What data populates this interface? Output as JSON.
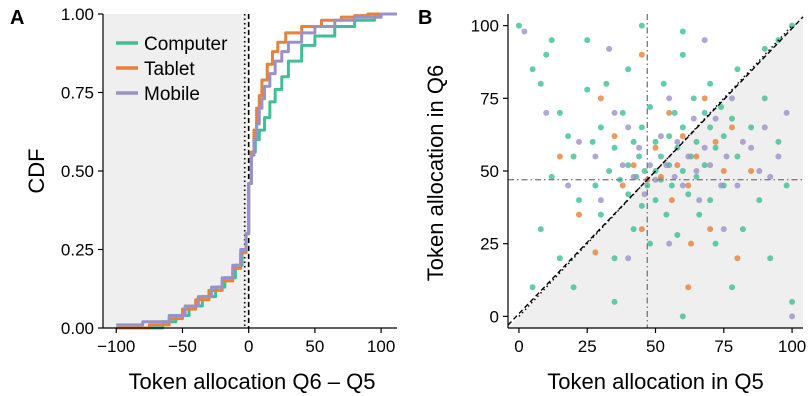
{
  "chart_data": [
    {
      "panel": "A",
      "type": "line",
      "subtype": "cdf",
      "xlabel": "Token allocation Q6 – Q5",
      "ylabel": "CDF",
      "xlim": [
        -110,
        112
      ],
      "ylim": [
        0,
        1
      ],
      "xticks": [
        -100,
        -50,
        0,
        50,
        100
      ],
      "xtick_labels": [
        "−100",
        "−50",
        "0",
        "50",
        "100"
      ],
      "yticks": [
        0,
        0.25,
        0.5,
        0.75,
        1
      ],
      "ytick_labels": [
        "0.00",
        "0.25",
        "0.50",
        "0.75",
        "1.00"
      ],
      "shaded_region": {
        "x": [
          -110,
          0
        ],
        "color": "#efefef"
      },
      "vlines": [
        {
          "x": 0,
          "style": "dashed",
          "color": "#000000"
        },
        {
          "x": -3,
          "style": "dotted",
          "color": "#000000"
        }
      ],
      "legend_position": "top-left",
      "series": [
        {
          "name": "Computer",
          "color": "#3fbf93",
          "x": [
            -100,
            -65,
            -55,
            -45,
            -35,
            -25,
            -18,
            -10,
            -5,
            -2,
            0,
            2,
            5,
            8,
            12,
            16,
            20,
            25,
            30,
            40,
            50,
            65,
            80,
            95,
            100
          ],
          "y": [
            0,
            0.02,
            0.04,
            0.07,
            0.1,
            0.13,
            0.16,
            0.2,
            0.25,
            0.3,
            0.46,
            0.56,
            0.6,
            0.63,
            0.67,
            0.72,
            0.76,
            0.8,
            0.85,
            0.9,
            0.93,
            0.96,
            0.98,
            0.99,
            1
          ]
        },
        {
          "name": "Tablet",
          "color": "#e8813a",
          "x": [
            -100,
            -75,
            -60,
            -50,
            -40,
            -30,
            -20,
            -12,
            -6,
            -2,
            0,
            2,
            4,
            6,
            8,
            10,
            14,
            18,
            22,
            28,
            40,
            55,
            70,
            80,
            90,
            100
          ],
          "y": [
            0,
            0.01,
            0.03,
            0.06,
            0.09,
            0.12,
            0.15,
            0.19,
            0.24,
            0.3,
            0.46,
            0.56,
            0.63,
            0.7,
            0.74,
            0.79,
            0.84,
            0.88,
            0.91,
            0.94,
            0.96,
            0.98,
            0.99,
            0.995,
            1,
            1
          ]
        },
        {
          "name": "Mobile",
          "color": "#9b91c9",
          "x": [
            -100,
            -80,
            -60,
            -48,
            -38,
            -28,
            -20,
            -12,
            -6,
            -2,
            0,
            2,
            4,
            6,
            8,
            10,
            12,
            16,
            20,
            25,
            30,
            40,
            50,
            65,
            80,
            100
          ],
          "y": [
            0.01,
            0.02,
            0.04,
            0.07,
            0.1,
            0.13,
            0.16,
            0.2,
            0.25,
            0.3,
            0.46,
            0.55,
            0.6,
            0.65,
            0.7,
            0.73,
            0.77,
            0.81,
            0.85,
            0.88,
            0.91,
            0.94,
            0.96,
            0.98,
            0.99,
            1
          ]
        }
      ]
    },
    {
      "panel": "B",
      "type": "scatter",
      "xlabel": "Token allocation in Q5",
      "ylabel": "Token allocation in Q6",
      "xlim": [
        -4,
        104
      ],
      "ylim": [
        -4,
        104
      ],
      "xticks": [
        0,
        25,
        50,
        75,
        100
      ],
      "yticks": [
        0,
        25,
        50,
        75,
        100
      ],
      "xtick_labels": [
        "0",
        "25",
        "50",
        "75",
        "100"
      ],
      "ytick_labels": [
        "0",
        "25",
        "50",
        "75",
        "100"
      ],
      "shaded_region": "below y = x",
      "ref_lines": [
        {
          "kind": "vline",
          "x": 47,
          "style": "dashdot",
          "color": "#808080"
        },
        {
          "kind": "hline",
          "y": 47,
          "style": "dashdot",
          "color": "#808080"
        },
        {
          "kind": "diagonal",
          "style": "dotted",
          "color": "#000000",
          "from": [
            0,
            0
          ],
          "to": [
            100,
            100
          ]
        },
        {
          "kind": "fit",
          "style": "dashed",
          "color": "#000000",
          "from": [
            -4,
            -3
          ],
          "to": [
            104,
            103
          ]
        }
      ],
      "series": [
        {
          "name": "Computer",
          "color": "#3fbf93",
          "points": [
            [
              0,
              100
            ],
            [
              5,
              85
            ],
            [
              8,
              80
            ],
            [
              10,
              90
            ],
            [
              12,
              95
            ],
            [
              15,
              70
            ],
            [
              18,
              62
            ],
            [
              20,
              55
            ],
            [
              22,
              40
            ],
            [
              25,
              78
            ],
            [
              27,
              60
            ],
            [
              28,
              45
            ],
            [
              30,
              65
            ],
            [
              30,
              35
            ],
            [
              32,
              80
            ],
            [
              33,
              50
            ],
            [
              35,
              58
            ],
            [
              35,
              20
            ],
            [
              37,
              47
            ],
            [
              38,
              70
            ],
            [
              40,
              52
            ],
            [
              40,
              42
            ],
            [
              40,
              85
            ],
            [
              42,
              60
            ],
            [
              42,
              30
            ],
            [
              43,
              48
            ],
            [
              44,
              55
            ],
            [
              45,
              65
            ],
            [
              45,
              38
            ],
            [
              46,
              50
            ],
            [
              47,
              45
            ],
            [
              48,
              72
            ],
            [
              48,
              25
            ],
            [
              50,
              50
            ],
            [
              50,
              60
            ],
            [
              50,
              40
            ],
            [
              52,
              55
            ],
            [
              52,
              47
            ],
            [
              53,
              80
            ],
            [
              54,
              35
            ],
            [
              55,
              62
            ],
            [
              55,
              52
            ],
            [
              56,
              45
            ],
            [
              57,
              70
            ],
            [
              58,
              58
            ],
            [
              58,
              28
            ],
            [
              60,
              50
            ],
            [
              60,
              65
            ],
            [
              60,
              90
            ],
            [
              62,
              42
            ],
            [
              63,
              55
            ],
            [
              64,
              75
            ],
            [
              65,
              60
            ],
            [
              65,
              48
            ],
            [
              66,
              35
            ],
            [
              68,
              70
            ],
            [
              68,
              52
            ],
            [
              70,
              65
            ],
            [
              70,
              80
            ],
            [
              70,
              40
            ],
            [
              72,
              58
            ],
            [
              72,
              25
            ],
            [
              74,
              72
            ],
            [
              75,
              62
            ],
            [
              75,
              45
            ],
            [
              78,
              68
            ],
            [
              80,
              55
            ],
            [
              80,
              85
            ],
            [
              82,
              30
            ],
            [
              85,
              65
            ],
            [
              88,
              40
            ],
            [
              90,
              75
            ],
            [
              92,
              20
            ],
            [
              95,
              60
            ],
            [
              98,
              45
            ],
            [
              100,
              100
            ],
            [
              100,
              5
            ],
            [
              8,
              30
            ],
            [
              15,
              20
            ],
            [
              20,
              10
            ],
            [
              5,
              10
            ],
            [
              35,
              5
            ],
            [
              60,
              0
            ],
            [
              78,
              10
            ],
            [
              90,
              92
            ],
            [
              12,
              48
            ],
            [
              25,
              95
            ],
            [
              45,
              100
            ],
            [
              60,
              98
            ],
            [
              95,
              95
            ]
          ]
        },
        {
          "name": "Tablet",
          "color": "#e8813a",
          "points": [
            [
              15,
              55
            ],
            [
              22,
              35
            ],
            [
              30,
              75
            ],
            [
              35,
              62
            ],
            [
              38,
              45
            ],
            [
              42,
              52
            ],
            [
              45,
              30
            ],
            [
              47,
              47
            ],
            [
              50,
              58
            ],
            [
              52,
              48
            ],
            [
              55,
              70
            ],
            [
              56,
              40
            ],
            [
              58,
              52
            ],
            [
              60,
              62
            ],
            [
              62,
              45
            ],
            [
              63,
              25
            ],
            [
              65,
              55
            ],
            [
              68,
              75
            ],
            [
              70,
              30
            ],
            [
              72,
              60
            ],
            [
              75,
              50
            ],
            [
              78,
              65
            ],
            [
              80,
              20
            ],
            [
              85,
              50
            ],
            [
              45,
              90
            ],
            [
              28,
              22
            ],
            [
              62,
              10
            ]
          ]
        },
        {
          "name": "Mobile",
          "color": "#9b91c9",
          "points": [
            [
              2,
              98
            ],
            [
              10,
              70
            ],
            [
              18,
              45
            ],
            [
              22,
              60
            ],
            [
              28,
              55
            ],
            [
              30,
              40
            ],
            [
              35,
              70
            ],
            [
              38,
              52
            ],
            [
              40,
              65
            ],
            [
              42,
              48
            ],
            [
              44,
              58
            ],
            [
              46,
              42
            ],
            [
              48,
              52
            ],
            [
              50,
              47
            ],
            [
              52,
              62
            ],
            [
              54,
              52
            ],
            [
              55,
              75
            ],
            [
              57,
              48
            ],
            [
              58,
              60
            ],
            [
              60,
              45
            ],
            [
              62,
              55
            ],
            [
              64,
              68
            ],
            [
              65,
              50
            ],
            [
              66,
              40
            ],
            [
              68,
              58
            ],
            [
              70,
              52
            ],
            [
              72,
              68
            ],
            [
              74,
              45
            ],
            [
              76,
              55
            ],
            [
              78,
              75
            ],
            [
              80,
              45
            ],
            [
              82,
              60
            ],
            [
              85,
              58
            ],
            [
              88,
              50
            ],
            [
              90,
              65
            ],
            [
              92,
              48
            ],
            [
              95,
              55
            ],
            [
              98,
              70
            ],
            [
              100,
              0
            ],
            [
              40,
              20
            ],
            [
              55,
              25
            ],
            [
              75,
              30
            ],
            [
              33,
              92
            ],
            [
              68,
              95
            ]
          ]
        }
      ]
    }
  ],
  "panel_labels": {
    "a": "A",
    "b": "B"
  }
}
